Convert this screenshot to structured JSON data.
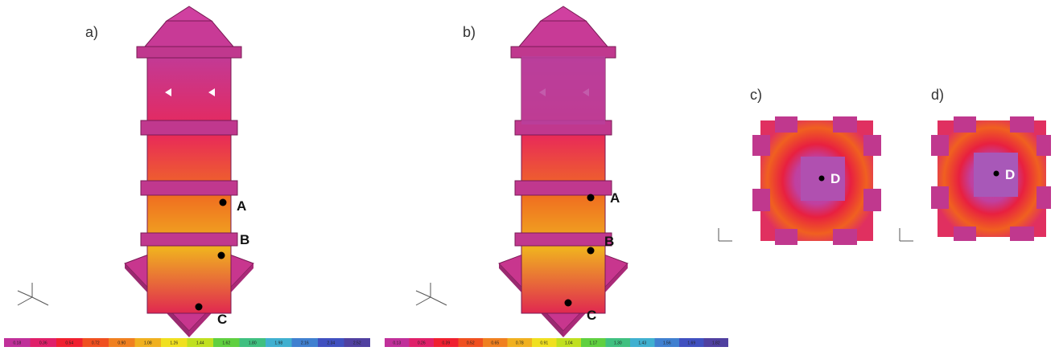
{
  "panels": [
    {
      "label": "a)"
    },
    {
      "label": "b)"
    },
    {
      "label": "c)"
    },
    {
      "label": "d)"
    }
  ],
  "points": {
    "a": [
      "A",
      "B",
      "C"
    ],
    "b": [
      "A",
      "B",
      "C"
    ],
    "c": [
      "D"
    ],
    "d": [
      "D"
    ]
  },
  "colorbars": [
    {
      "labels": [
        "0.18",
        "0.36",
        "0.54",
        "0.72",
        "0.90",
        "1.08",
        "1.26",
        "1.44",
        "1.62",
        "1.80",
        "1.98",
        "2.16",
        "2.34",
        "2.52"
      ]
    },
    {
      "labels": [
        "0.13",
        "0.26",
        "0.39",
        "0.52",
        "0.65",
        "0.78",
        "0.91",
        "1.04",
        "1.17",
        "1.30",
        "1.43",
        "1.56",
        "1.69",
        "1.82"
      ]
    }
  ]
}
